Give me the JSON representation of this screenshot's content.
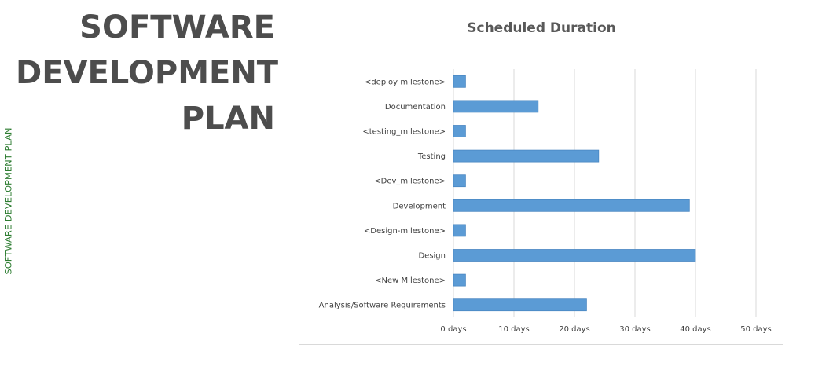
{
  "sidebar": {
    "vertical_label": "SOFTWARE DEVELOPMENT PLAN"
  },
  "header": {
    "title_lines": [
      "SOFTWARE",
      "DEVELOPMENT",
      "PLAN"
    ]
  },
  "colors": {
    "bar": "#5b9bd5",
    "bar_edge": "#4a87c2",
    "grid": "#d9d9d9",
    "title_text": "#4d4d4d",
    "side_text": "#2e7d32"
  },
  "chart_data": {
    "type": "bar",
    "orientation": "horizontal",
    "title": "Scheduled Duration",
    "categories": [
      "<deploy-milestone>",
      "Documentation",
      "<testing_milestone>",
      "Testing",
      "<Dev_milestone>",
      "Development",
      "<Design-milestone>",
      "Design",
      "<New Milestone>",
      "Analysis/Software Requirements"
    ],
    "values": [
      2,
      14,
      2,
      24,
      2,
      39,
      2,
      40,
      2,
      22
    ],
    "xlim": [
      0,
      50
    ],
    "xticks": [
      0,
      10,
      20,
      30,
      40,
      50
    ],
    "xtick_labels": [
      "0 days",
      "10 days",
      "20 days",
      "30 days",
      "40 days",
      "50 days"
    ],
    "xlabel": "",
    "ylabel": "",
    "grid": true,
    "legend": "none"
  }
}
